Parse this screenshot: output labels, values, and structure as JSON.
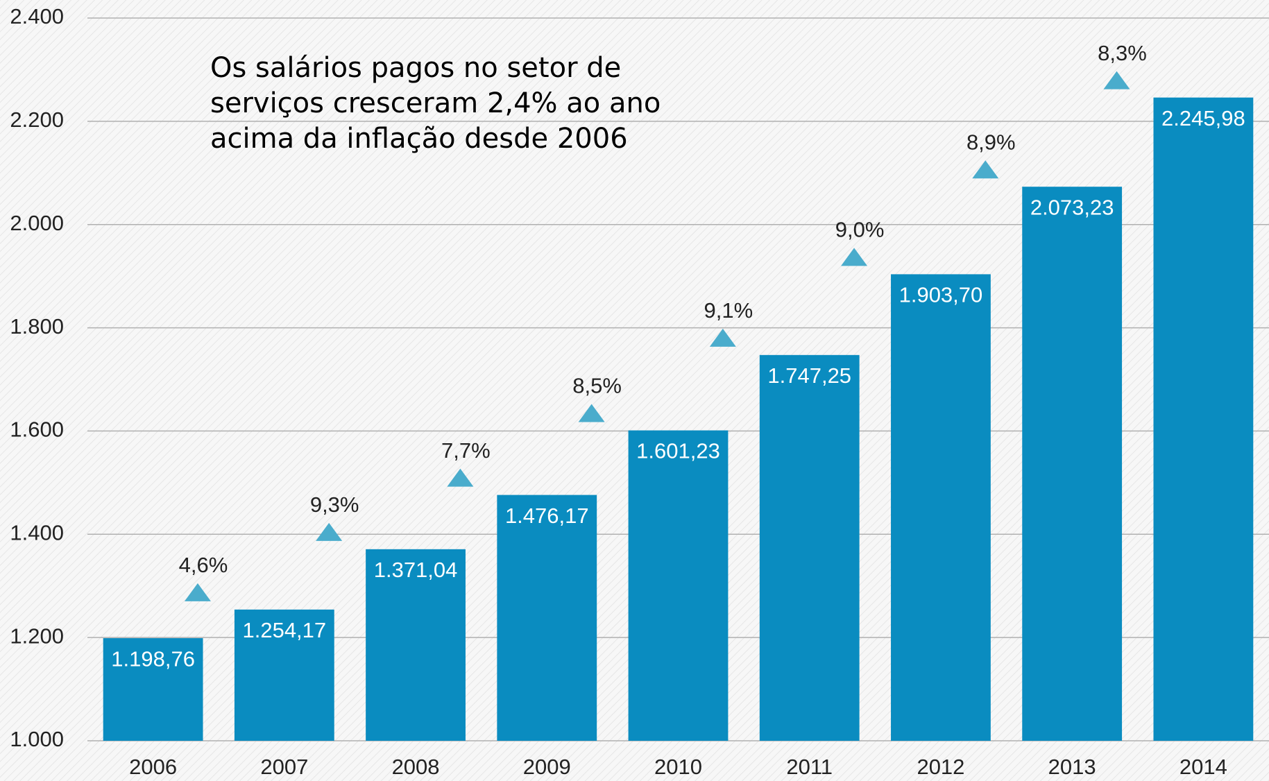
{
  "chart_data": {
    "type": "bar",
    "title": [
      "Os salários pagos no setor de",
      "serviços cresceram 2,4% ao ano",
      "acima da inflação desde 2006"
    ],
    "categories": [
      "2006",
      "2007",
      "2008",
      "2009",
      "2010",
      "2011",
      "2012",
      "2013",
      "2014"
    ],
    "values": [
      1198.76,
      1254.17,
      1371.04,
      1476.17,
      1601.23,
      1747.25,
      1903.7,
      2073.23,
      2245.98
    ],
    "value_labels": [
      "1.198,76",
      "1.254,17",
      "1.371,04",
      "1.476,17",
      "1.601,23",
      "1.747,25",
      "1.903,70",
      "2.073,23",
      "2.245,98"
    ],
    "color": "#0a8cc0",
    "growth": {
      "values": [
        null,
        4.6,
        9.3,
        7.7,
        8.5,
        9.1,
        9.0,
        8.9,
        8.3
      ],
      "value_labels": [
        null,
        "4,6%",
        "9,3%",
        "7,7%",
        "8,5%",
        "9,1%",
        "9,0%",
        "8,9%",
        "8,3%"
      ],
      "color": "#4aaccc"
    },
    "ylim": [
      1000,
      2400
    ],
    "yticks": [
      {
        "value": 1000,
        "label": "1.000"
      },
      {
        "value": 1200,
        "label": "1.200"
      },
      {
        "value": 1400,
        "label": "1.400"
      },
      {
        "value": 1600,
        "label": "1.600"
      },
      {
        "value": 1800,
        "label": "1.800"
      },
      {
        "value": 2000,
        "label": "2.000"
      },
      {
        "value": 2200,
        "label": "2.200"
      },
      {
        "value": 2400,
        "label": "2.400"
      }
    ],
    "grid": true
  }
}
